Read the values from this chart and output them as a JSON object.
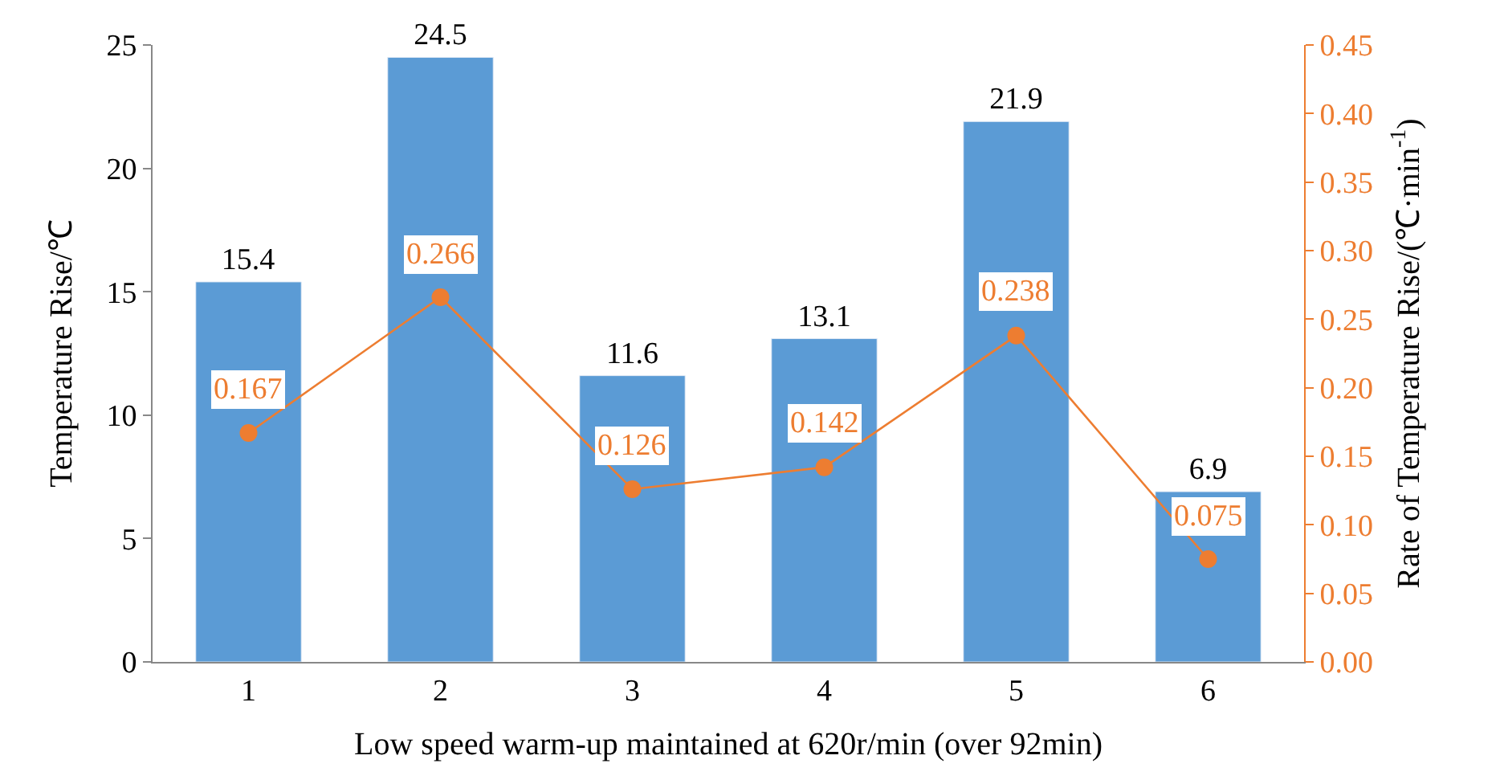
{
  "chart_data": {
    "type": "bar",
    "xlabel": "Low speed warm-up maintained at 620r/min (over 92min)",
    "ylabel": "Temperature Rise/℃",
    "y2label": "Rate of Temperature Rise/(℃·min$^{-1}$)",
    "categories": [
      "1",
      "2",
      "3",
      "4",
      "5",
      "6"
    ],
    "series": [
      {
        "color": "#5b9bd5",
        "values": [
          15.4,
          24.5,
          11.6,
          13.1,
          21.9,
          6.9
        ]
      },
      {
        "type": "line",
        "axis": "y2",
        "color": "#ed7d31",
        "marker": "circle",
        "values": [
          0.167,
          0.266,
          0.126,
          0.142,
          0.238,
          0.075
        ]
      }
    ],
    "ylim": [
      0,
      25
    ],
    "yticks": [
      0,
      5,
      10,
      15,
      20,
      25
    ],
    "y2lim": [
      0,
      0.45
    ],
    "y2ticks": [
      {
        "value": 0,
        "label": "0.00"
      },
      {
        "value": 0.05,
        "label": "0.05"
      },
      {
        "value": 0.1,
        "label": "0.10"
      },
      {
        "value": 0.15,
        "label": "0.15"
      },
      {
        "value": 0.2,
        "label": "0.20"
      },
      {
        "value": 0.25,
        "label": "0.25"
      },
      {
        "value": 0.3,
        "label": "0.30"
      },
      {
        "value": 0.35,
        "label": "0.35"
      },
      {
        "value": 0.4,
        "label": "0.40"
      },
      {
        "value": 0.45,
        "label": "0.45"
      }
    ],
    "data_labels": true,
    "legend": false
  }
}
